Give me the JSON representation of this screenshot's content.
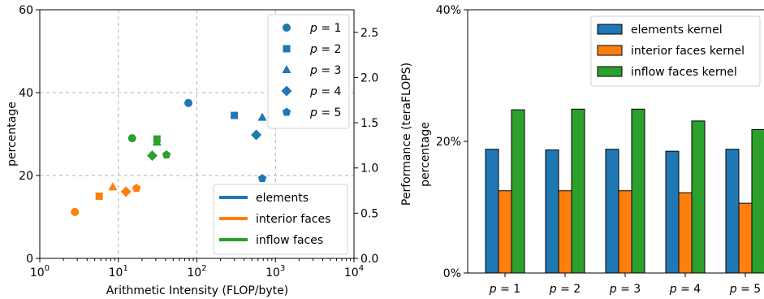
{
  "chart_data": [
    {
      "type": "scatter",
      "xlabel": "Arithmetic Intensity (FLOP/byte)",
      "ylabel_left": "percentage",
      "ylabel_right": "Performance (teraFLOPS)",
      "x_scale": "log",
      "xlim": [
        1,
        10000
      ],
      "ylim_left": [
        0,
        60
      ],
      "ylim_right": [
        0,
        2.75
      ],
      "x_ticks": [
        1,
        10,
        100,
        1000,
        10000
      ],
      "x_tick_labels": [
        {
          "base": "10",
          "exp": "0"
        },
        {
          "base": "10",
          "exp": "1"
        },
        {
          "base": "10",
          "exp": "2"
        },
        {
          "base": "10",
          "exp": "3"
        },
        {
          "base": "10",
          "exp": "4"
        }
      ],
      "y_ticks_left": [
        0,
        20,
        40,
        60
      ],
      "y_ticks_right": [
        0.0,
        0.5,
        1.0,
        1.5,
        2.0,
        2.5
      ],
      "y_tick_labels_right": [
        "0.0",
        "0.5",
        "1.0",
        "1.5",
        "2.0",
        "2.5"
      ],
      "grid": true,
      "marker_legend": [
        {
          "label": "p = 1",
          "marker": "circle"
        },
        {
          "label": "p = 2",
          "marker": "square"
        },
        {
          "label": "p = 3",
          "marker": "triangle"
        },
        {
          "label": "p = 4",
          "marker": "diamond"
        },
        {
          "label": "p = 5",
          "marker": "pentagon"
        }
      ],
      "series": [
        {
          "name": "elements",
          "color": "#1f77b4",
          "points": [
            {
              "x": 78,
              "y": 37.5,
              "marker": "circle"
            },
            {
              "x": 300,
              "y": 34.5,
              "marker": "square"
            },
            {
              "x": 680,
              "y": 34,
              "marker": "triangle"
            },
            {
              "x": 570,
              "y": 29.8,
              "marker": "diamond"
            },
            {
              "x": 680,
              "y": 19.3,
              "marker": "pentagon"
            }
          ]
        },
        {
          "name": "interior faces",
          "color": "#ff7f0e",
          "points": [
            {
              "x": 2.8,
              "y": 11.2,
              "marker": "circle"
            },
            {
              "x": 5.7,
              "y": 15,
              "marker": "square"
            },
            {
              "x": 8.5,
              "y": 17.2,
              "marker": "triangle"
            },
            {
              "x": 12.5,
              "y": 16.1,
              "marker": "diamond"
            },
            {
              "x": 17,
              "y": 16.9,
              "marker": "pentagon"
            }
          ]
        },
        {
          "name": "inflow faces",
          "color": "#2ca02c",
          "points": [
            {
              "x": 15,
              "y": 29,
              "marker": "circle"
            },
            {
              "x": 31,
              "y": 28.8,
              "marker": "square"
            },
            {
              "x": 31,
              "y": 28,
              "marker": "triangle"
            },
            {
              "x": 27,
              "y": 24.8,
              "marker": "diamond"
            },
            {
              "x": 41,
              "y": 25,
              "marker": "pentagon"
            }
          ]
        }
      ],
      "marker_legend_position": "top-right",
      "line_legend_position": "bottom-right"
    },
    {
      "type": "bar",
      "ylabel": "percentage",
      "ylim": [
        0,
        40
      ],
      "y_ticks": [
        0,
        20,
        40
      ],
      "y_tick_labels": [
        "0%",
        "20%",
        "40%"
      ],
      "categories": [
        "p = 1",
        "p = 2",
        "p = 3",
        "p = 4",
        "p = 5"
      ],
      "series": [
        {
          "name": "elements kernel",
          "color": "#1f77b4",
          "values": [
            18.8,
            18.7,
            18.8,
            18.5,
            18.8
          ]
        },
        {
          "name": "interior faces kernel",
          "color": "#ff7f0e",
          "values": [
            12.5,
            12.5,
            12.5,
            12.2,
            10.6
          ]
        },
        {
          "name": "inflow faces kernel",
          "color": "#2ca02c",
          "values": [
            24.8,
            24.9,
            24.9,
            23.1,
            21.8
          ]
        }
      ],
      "legend_position": "top-right"
    }
  ]
}
